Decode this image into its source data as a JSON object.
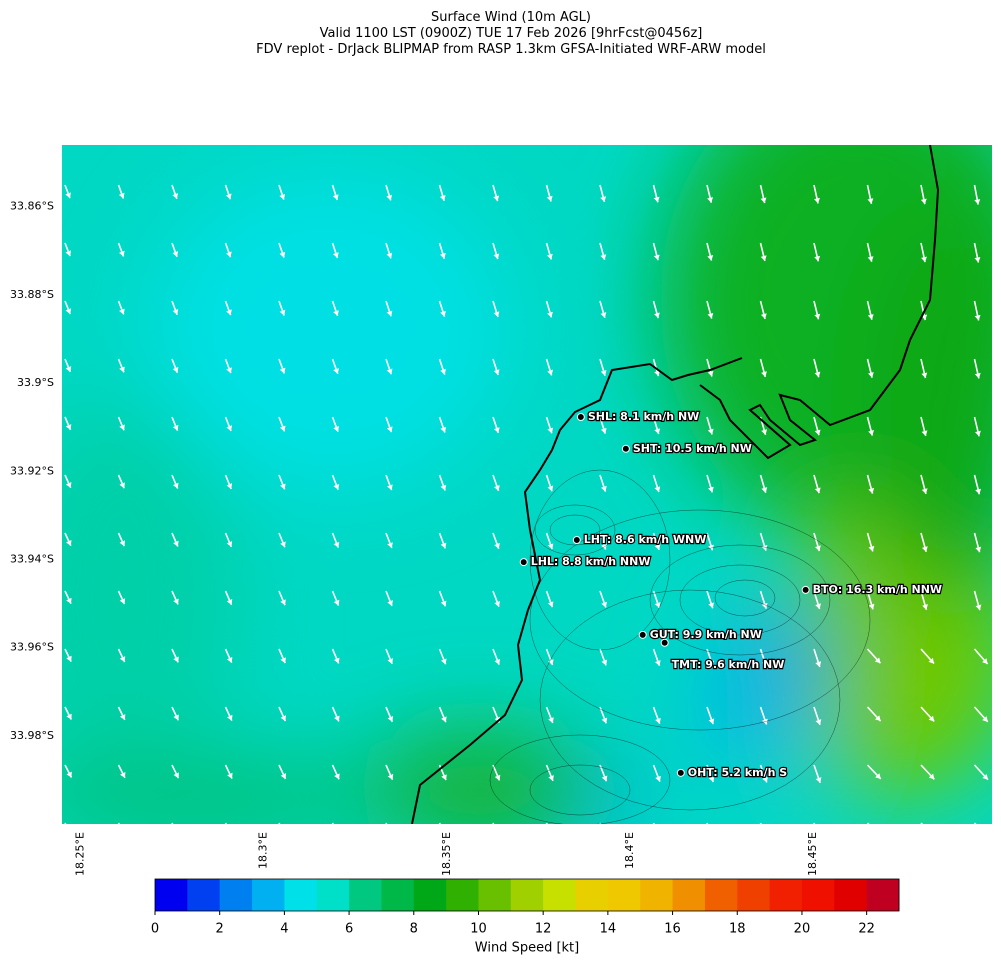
{
  "title": [
    "Surface Wind (10m AGL)",
    "Valid 1100 LST (0900Z) TUE 17 Feb 2026 [9hrFcst@0456z]",
    "FDV replot - DrJack BLIPMAP from RASP 1.3km GFSA-Initiated WRF-ARW model"
  ],
  "map": {
    "lonlim": [
      18.246,
      18.5
    ],
    "latlim": [
      -34.0,
      -33.846
    ],
    "lonticks": [
      {
        "value": 18.25,
        "label": "18.25°E"
      },
      {
        "value": 18.3,
        "label": "18.3°E"
      },
      {
        "value": 18.35,
        "label": "18.35°E"
      },
      {
        "value": 18.4,
        "label": "18.4°E"
      },
      {
        "value": 18.45,
        "label": "18.45°E"
      }
    ],
    "latticks": [
      {
        "value": -33.86,
        "label": "33.86°S"
      },
      {
        "value": -33.88,
        "label": "33.88°S"
      },
      {
        "value": -33.9,
        "label": "33.9°S"
      },
      {
        "value": -33.92,
        "label": "33.92°S"
      },
      {
        "value": -33.94,
        "label": "33.94°S"
      },
      {
        "value": -33.96,
        "label": "33.96°S"
      },
      {
        "value": -33.98,
        "label": "33.98°S"
      }
    ],
    "stations": [
      {
        "label": "SHL: 8.1 km/h NW",
        "lon": 18.3877,
        "lat": -33.9077
      },
      {
        "label": "SHT: 10.5 km/h NW",
        "lon": 18.4,
        "lat": -33.9149
      },
      {
        "label": "LHT: 8.6 km/h WNW",
        "lon": 18.3866,
        "lat": -33.9356
      },
      {
        "label": "LHL: 8.8 km/h NNW",
        "lon": 18.3721,
        "lat": -33.9406
      },
      {
        "label": "BTO: 16.3 km/h NNW",
        "lon": 18.4491,
        "lat": -33.9469
      },
      {
        "label": "GUT: 9.9 km/h NW",
        "lon": 18.4046,
        "lat": -33.9571
      },
      {
        "label": "TMT: 9.6 km/h NW",
        "lon": 18.4106,
        "lat": -33.9589
      },
      {
        "label": "OHT: 5.2 km/h S",
        "lon": 18.415,
        "lat": -33.9884
      }
    ]
  },
  "colorbar": {
    "label": "Wind Speed [kt]",
    "lim": [
      0,
      23
    ],
    "ticks": [
      0,
      2,
      4,
      6,
      8,
      10,
      12,
      14,
      16,
      18,
      20,
      22
    ],
    "colors": [
      "#0000f0",
      "#0040f0",
      "#0080f0",
      "#00b0f0",
      "#00e0e8",
      "#00e0c8",
      "#00c880",
      "#00b848",
      "#00a818",
      "#30b000",
      "#68c000",
      "#a0d000",
      "#c8e000",
      "#e8d000",
      "#f0c800",
      "#f0b400",
      "#f09000",
      "#f06000",
      "#f04000",
      "#f02000",
      "#f01000",
      "#e00000",
      "#c00020"
    ]
  }
}
